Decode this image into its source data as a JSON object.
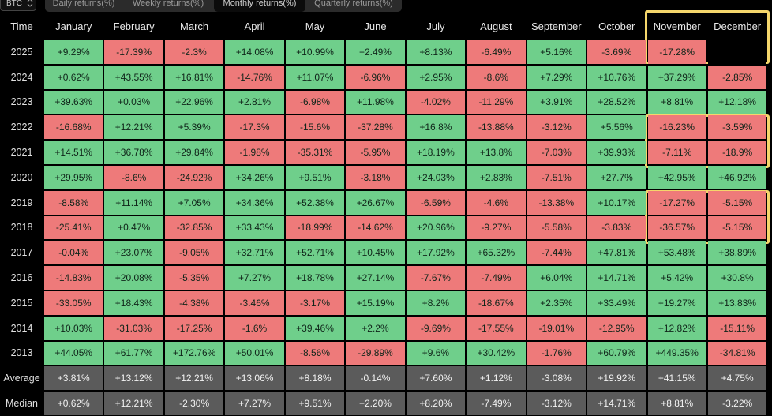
{
  "toolbar": {
    "asset": "BTC",
    "tabs": [
      "Daily returns(%)",
      "Weekly returns(%)",
      "Monthly returns(%)",
      "Quarterly returns(%)"
    ]
  },
  "table": {
    "header": [
      "Time",
      "January",
      "February",
      "March",
      "April",
      "May",
      "June",
      "July",
      "August",
      "September",
      "October",
      "November",
      "December"
    ],
    "rows": [
      [
        "2025",
        "+9.29%",
        "-17.39%",
        "-2.3%",
        "+14.08%",
        "+10.99%",
        "+2.49%",
        "+8.13%",
        "-6.49%",
        "+5.16%",
        "-3.69%",
        "-17.28%",
        null
      ],
      [
        "2024",
        "+0.62%",
        "+43.55%",
        "+16.81%",
        "-14.76%",
        "+11.07%",
        "-6.96%",
        "+2.95%",
        "-8.6%",
        "+7.29%",
        "+10.76%",
        "+37.29%",
        "-2.85%"
      ],
      [
        "2023",
        "+39.63%",
        "+0.03%",
        "+22.96%",
        "+2.81%",
        "-6.98%",
        "+11.98%",
        "-4.02%",
        "-11.29%",
        "+3.91%",
        "+28.52%",
        "+8.81%",
        "+12.18%"
      ],
      [
        "2022",
        "-16.68%",
        "+12.21%",
        "+5.39%",
        "-17.3%",
        "-15.6%",
        "-37.28%",
        "+16.8%",
        "-13.88%",
        "-3.12%",
        "+5.56%",
        "-16.23%",
        "-3.59%"
      ],
      [
        "2021",
        "+14.51%",
        "+36.78%",
        "+29.84%",
        "-1.98%",
        "-35.31%",
        "-5.95%",
        "+18.19%",
        "+13.8%",
        "-7.03%",
        "+39.93%",
        "-7.11%",
        "-18.9%"
      ],
      [
        "2020",
        "+29.95%",
        "-8.6%",
        "-24.92%",
        "+34.26%",
        "+9.51%",
        "-3.18%",
        "+24.03%",
        "+2.83%",
        "-7.51%",
        "+27.7%",
        "+42.95%",
        "+46.92%"
      ],
      [
        "2019",
        "-8.58%",
        "+11.14%",
        "+7.05%",
        "+34.36%",
        "+52.38%",
        "+26.67%",
        "-6.59%",
        "-4.6%",
        "-13.38%",
        "+10.17%",
        "-17.27%",
        "-5.15%"
      ],
      [
        "2018",
        "-25.41%",
        "+0.47%",
        "-32.85%",
        "+33.43%",
        "-18.99%",
        "-14.62%",
        "+20.96%",
        "-9.27%",
        "-5.58%",
        "-3.83%",
        "-36.57%",
        "-5.15%"
      ],
      [
        "2017",
        "-0.04%",
        "+23.07%",
        "-9.05%",
        "+32.71%",
        "+52.71%",
        "+10.45%",
        "+17.92%",
        "+65.32%",
        "-7.44%",
        "+47.81%",
        "+53.48%",
        "+38.89%"
      ],
      [
        "2016",
        "-14.83%",
        "+20.08%",
        "-5.35%",
        "+7.27%",
        "+18.78%",
        "+27.14%",
        "-7.67%",
        "-7.49%",
        "+6.04%",
        "+14.71%",
        "+5.42%",
        "+30.8%"
      ],
      [
        "2015",
        "-33.05%",
        "+18.43%",
        "-4.38%",
        "-3.46%",
        "-3.17%",
        "+15.19%",
        "+8.2%",
        "-18.67%",
        "+2.35%",
        "+33.49%",
        "+19.27%",
        "+13.83%"
      ],
      [
        "2014",
        "+10.03%",
        "-31.03%",
        "-17.25%",
        "-1.6%",
        "+39.46%",
        "+2.2%",
        "-9.69%",
        "-17.55%",
        "-19.01%",
        "-12.95%",
        "+12.82%",
        "-15.11%"
      ],
      [
        "2013",
        "+44.05%",
        "+61.77%",
        "+172.76%",
        "+50.01%",
        "-8.56%",
        "-29.89%",
        "+9.6%",
        "+30.42%",
        "-1.76%",
        "+60.79%",
        "+449.35%",
        "-34.81%"
      ]
    ],
    "summary": [
      [
        "Average",
        "+3.81%",
        "+13.12%",
        "+12.21%",
        "+13.06%",
        "+8.18%",
        "-0.14%",
        "+7.60%",
        "+1.12%",
        "-3.08%",
        "+19.92%",
        "+41.15%",
        "+4.75%"
      ],
      [
        "Median",
        "+0.62%",
        "+12.21%",
        "-2.30%",
        "+7.27%",
        "+9.51%",
        "+2.20%",
        "+8.20%",
        "-7.49%",
        "-3.12%",
        "+14.71%",
        "+8.81%",
        "-3.22%"
      ]
    ]
  }
}
